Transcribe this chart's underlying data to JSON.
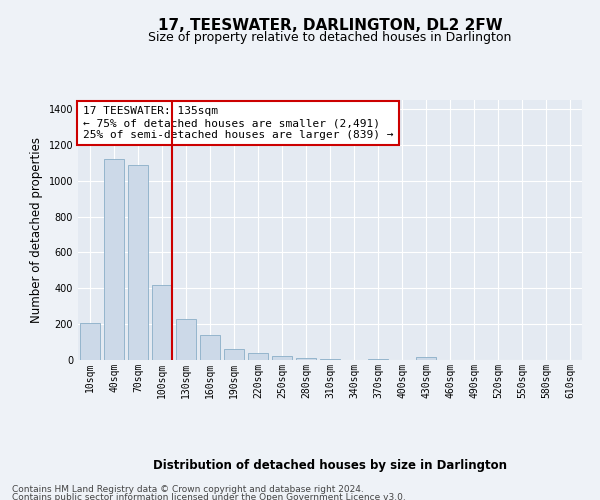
{
  "title": "17, TEESWATER, DARLINGTON, DL2 2FW",
  "subtitle": "Size of property relative to detached houses in Darlington",
  "xlabel": "Distribution of detached houses by size in Darlington",
  "ylabel": "Number of detached properties",
  "footer_line1": "Contains HM Land Registry data © Crown copyright and database right 2024.",
  "footer_line2": "Contains public sector information licensed under the Open Government Licence v3.0.",
  "bar_categories": [
    "10sqm",
    "40sqm",
    "70sqm",
    "100sqm",
    "130sqm",
    "160sqm",
    "190sqm",
    "220sqm",
    "250sqm",
    "280sqm",
    "310sqm",
    "340sqm",
    "370sqm",
    "400sqm",
    "430sqm",
    "460sqm",
    "490sqm",
    "520sqm",
    "550sqm",
    "580sqm",
    "610sqm"
  ],
  "bar_values": [
    205,
    1120,
    1090,
    420,
    230,
    140,
    60,
    38,
    22,
    10,
    8,
    0,
    8,
    0,
    18,
    0,
    0,
    0,
    0,
    0,
    0
  ],
  "bar_color": "#ccd9e8",
  "bar_edge_color": "#8aaec8",
  "highlight_line_color": "#cc0000",
  "highlight_line_bin": 3,
  "annotation_text": "17 TEESWATER: 135sqm\n← 75% of detached houses are smaller (2,491)\n25% of semi-detached houses are larger (839) →",
  "annotation_box_color": "#cc0000",
  "ylim": [
    0,
    1450
  ],
  "yticks": [
    0,
    200,
    400,
    600,
    800,
    1000,
    1200,
    1400
  ],
  "background_color": "#eef2f7",
  "plot_bg_color": "#e4eaf2",
  "grid_color": "#ffffff",
  "title_fontsize": 11,
  "subtitle_fontsize": 9,
  "axis_label_fontsize": 8.5,
  "tick_fontsize": 7,
  "footer_fontsize": 6.5,
  "annotation_fontsize": 8
}
